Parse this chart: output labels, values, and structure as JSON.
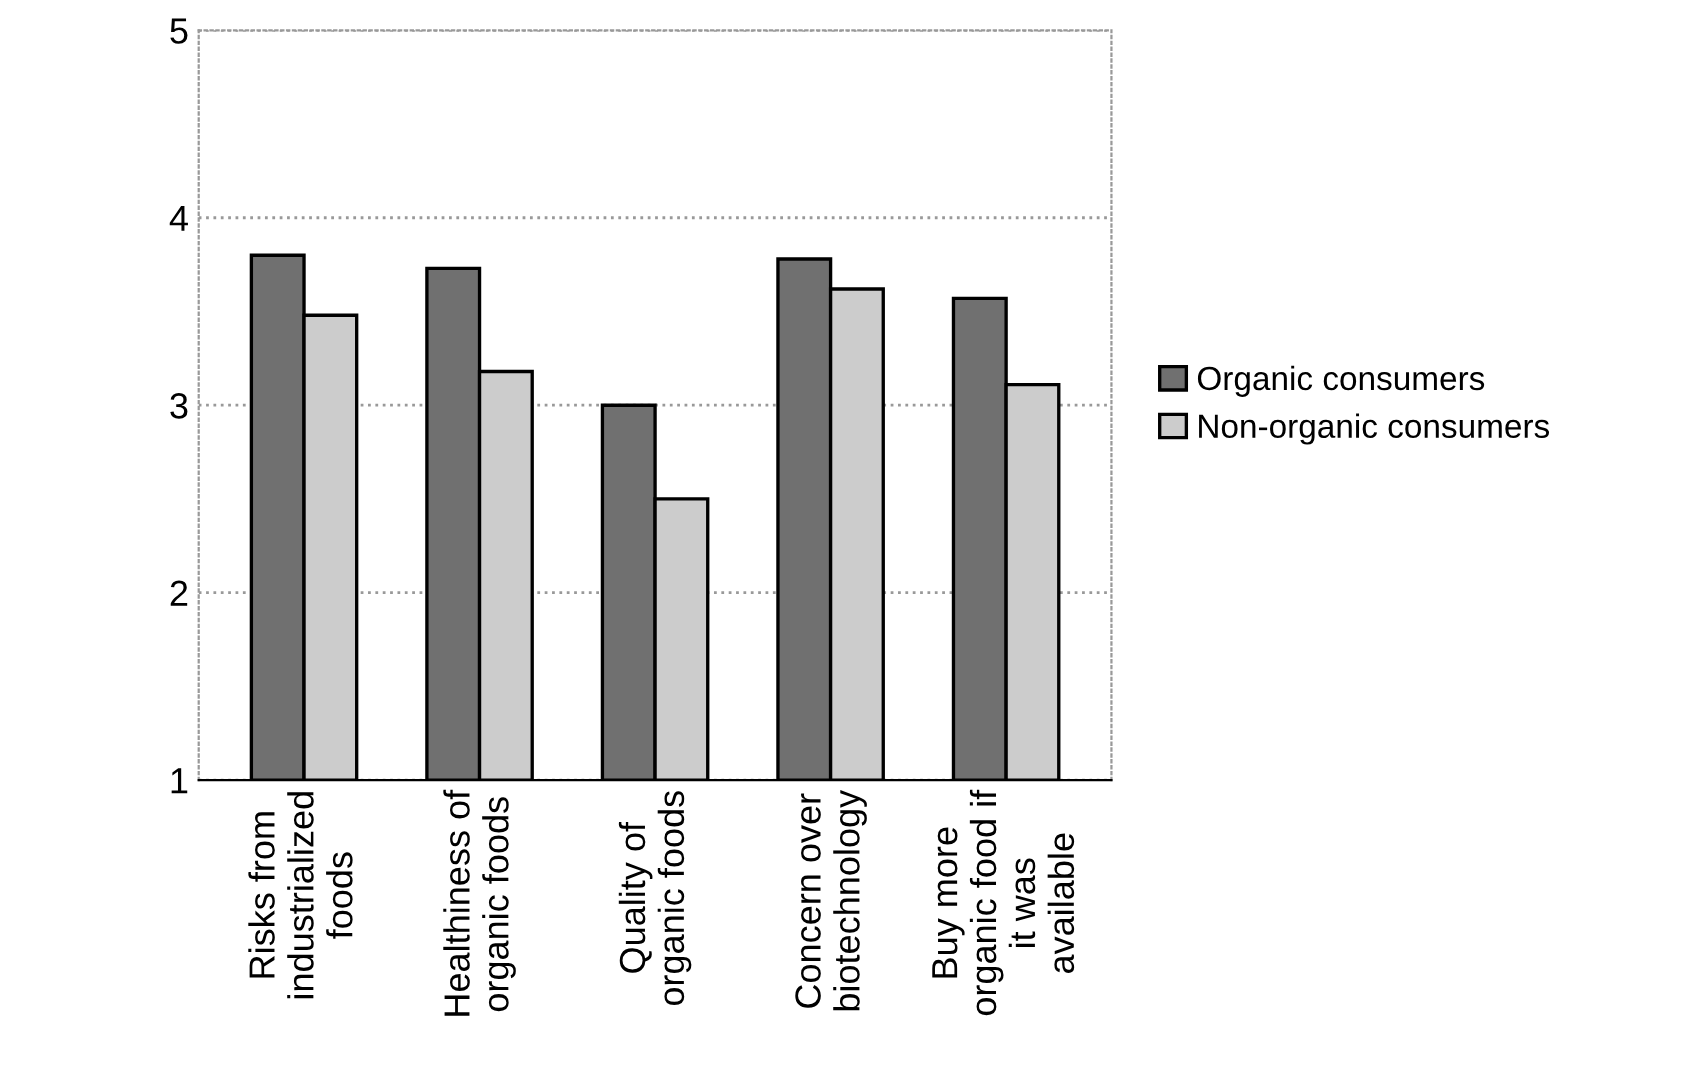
{
  "chart_data": {
    "type": "bar",
    "categories": [
      "Risks from\nindustrialized\nfoods",
      "Healthiness of\norganic foods",
      "Quality of\norganic foods",
      "Concern over\nbiotechnology",
      "Buy more\norganic food if\nit was\navailable"
    ],
    "series": [
      {
        "name": "Organic consumers",
        "color": "#707070",
        "values": [
          3.8,
          3.73,
          3.0,
          3.78,
          3.57
        ]
      },
      {
        "name": "Non-organic consumers",
        "color": "#cccccc",
        "values": [
          3.48,
          3.18,
          2.5,
          3.62,
          3.11
        ]
      }
    ],
    "ylim": [
      1,
      5
    ],
    "yticks": [
      1,
      2,
      3,
      4,
      5
    ],
    "grid": "y",
    "legend": "right"
  }
}
